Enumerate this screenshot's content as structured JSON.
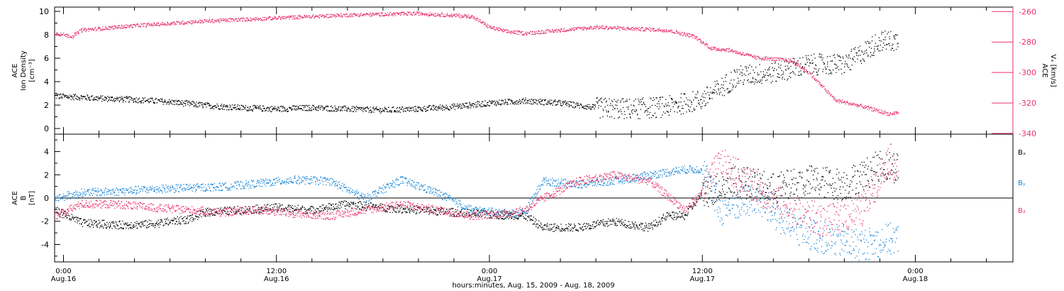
{
  "colors": {
    "density": "#000000",
    "velocity": "#e8336b",
    "bx": "#000000",
    "by": "#1a86d8",
    "bz": "#e8336b",
    "axis": "#000000"
  },
  "x_axis": {
    "ticks": [
      {
        "time": "0:00",
        "date": "Aug.16"
      },
      {
        "time": "12:00",
        "date": "Aug.16"
      },
      {
        "time": "0:00",
        "date": "Aug.17"
      },
      {
        "time": "12:00",
        "date": "Aug.17"
      },
      {
        "time": "0:00",
        "date": "Aug.18"
      }
    ],
    "label": "hours:minutes, Aug. 15, 2009 - Aug. 18, 2009"
  },
  "chart_data": [
    {
      "type": "scatter",
      "title": "",
      "xlabel": "hours:minutes, Aug. 15, 2009 - Aug. 18, 2009",
      "x_unit": "hours since Aug.16 0:00",
      "xlim": [
        -0.5,
        53.5
      ],
      "grid": false,
      "left_axis": {
        "label_lines": [
          "ACE",
          "Ion Density",
          "[cm⁻³]"
        ],
        "ylim": [
          -0.3,
          10
        ],
        "ticks": [
          0,
          2,
          4,
          6,
          8,
          10
        ]
      },
      "right_axis": {
        "label_lines": [
          "ACE",
          "Vₓ [km/s]"
        ],
        "ylim": [
          -340,
          -258
        ],
        "ticks": [
          -260,
          -280,
          -300,
          -320,
          -340
        ]
      },
      "series": [
        {
          "key": "density",
          "axis": "left",
          "x": [
            -0.5,
            1,
            2,
            4,
            6,
            8,
            10,
            12,
            14,
            16,
            18,
            20,
            22,
            24,
            26,
            28,
            30,
            32,
            34,
            36,
            38,
            40,
            42,
            44,
            46,
            47
          ],
          "values": [
            2.8,
            2.7,
            2.6,
            2.5,
            2.3,
            2.0,
            1.8,
            1.7,
            1.8,
            1.7,
            1.6,
            1.7,
            1.9,
            2.2,
            2.4,
            2.2,
            1.8,
            1.7,
            1.9,
            2.5,
            4.5,
            4.8,
            5.5,
            5.5,
            7.5,
            7.5
          ]
        },
        {
          "key": "velocity",
          "axis": "right",
          "x": [
            -0.5,
            0.5,
            1,
            4,
            8,
            12,
            16,
            20,
            23,
            24,
            25,
            26,
            28,
            30,
            32,
            34,
            35.5,
            36.5,
            37.5,
            39,
            41,
            42,
            43.5,
            45,
            46.5,
            47
          ],
          "values": [
            -274,
            -276,
            -272,
            -269,
            -266,
            -264,
            -262,
            -261,
            -263,
            -270,
            -273,
            -274,
            -272,
            -270,
            -271,
            -272,
            -276,
            -284,
            -285,
            -290,
            -292,
            -300,
            -318,
            -322,
            -327,
            -326
          ]
        }
      ]
    },
    {
      "type": "scatter",
      "title": "",
      "xlabel": "hours:minutes, Aug. 15, 2009 - Aug. 18, 2009",
      "x_unit": "hours since Aug.16 0:00",
      "xlim": [
        -0.5,
        53.5
      ],
      "ylabel_lines": [
        "ACE",
        "B",
        "[nT]"
      ],
      "ylim": [
        -5.5,
        5.5
      ],
      "yticks": [
        -4,
        -2,
        0,
        2,
        4
      ],
      "zero_line": true,
      "legend_placement": "right",
      "series": [
        {
          "key": "bx",
          "name": "Bₓ",
          "x": [
            -0.5,
            1,
            3,
            5,
            7,
            8,
            10,
            12,
            14,
            16,
            18,
            20,
            22,
            24,
            26,
            27,
            29,
            31,
            33,
            34,
            35,
            36,
            38,
            40,
            42,
            44,
            46,
            47
          ],
          "values": [
            -1.0,
            -2.1,
            -2.3,
            -2.2,
            -1.8,
            -1.2,
            -1.0,
            -0.8,
            -1.0,
            -0.5,
            -0.8,
            -1.0,
            -1.2,
            -1.4,
            -1.5,
            -2.5,
            -2.5,
            -2.0,
            -2.5,
            -1.5,
            -1.5,
            0.5,
            1.5,
            0.8,
            1.5,
            1.2,
            2.8,
            2.7
          ]
        },
        {
          "key": "by",
          "name": "Bᵧ",
          "x": [
            -0.5,
            1,
            3,
            5,
            7,
            9,
            11,
            13,
            15,
            17,
            19,
            21,
            23,
            25,
            26,
            27,
            29,
            31,
            33,
            35,
            36,
            37,
            39,
            41,
            43,
            45,
            46.5,
            47
          ],
          "values": [
            0.0,
            0.5,
            0.6,
            0.8,
            0.9,
            1.0,
            1.3,
            1.6,
            1.5,
            0.0,
            1.6,
            0.5,
            -1.0,
            -1.3,
            -1.2,
            1.5,
            1.2,
            1.5,
            2.0,
            2.5,
            2.5,
            -1.0,
            0.0,
            -2.5,
            -3.5,
            -4.0,
            -3.5,
            -3.5
          ]
        },
        {
          "key": "bz",
          "name": "B₂",
          "x": [
            -0.5,
            1,
            3,
            5,
            7,
            9,
            11,
            13,
            15,
            17,
            19,
            21,
            23,
            25,
            26,
            27,
            29,
            31,
            33,
            35,
            36,
            37,
            39,
            41,
            43,
            45,
            46.5,
            47
          ],
          "values": [
            -1.5,
            -0.5,
            -0.5,
            -0.8,
            -1.0,
            -1.2,
            -1.0,
            -1.3,
            -1.5,
            -1.0,
            -0.5,
            -1.0,
            -1.5,
            -1.3,
            -1.0,
            0.0,
            1.5,
            2.0,
            1.5,
            -1.0,
            0.5,
            3.0,
            1.0,
            -1.0,
            -2.0,
            -1.0,
            3.5,
            2.5
          ]
        }
      ]
    }
  ]
}
